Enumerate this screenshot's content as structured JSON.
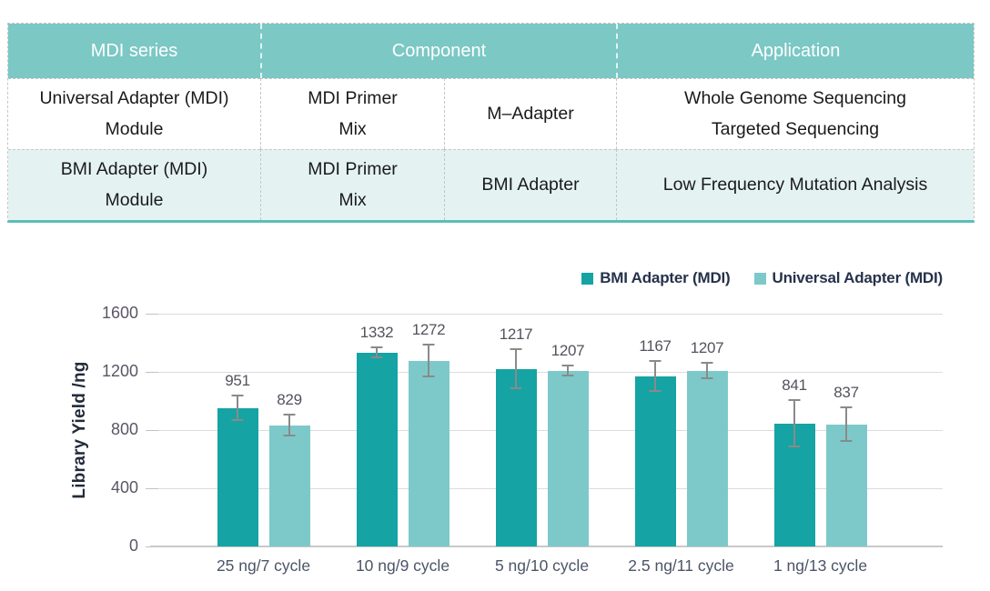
{
  "table": {
    "header": {
      "mdi_series": "MDI series",
      "component": "Component",
      "application": "Application"
    },
    "rows": [
      {
        "cells": [
          "Universal Adapter (MDI)\nModule",
          "MDI Primer\nMix",
          "M–Adapter",
          "Whole Genome Sequencing\nTargeted Sequencing"
        ]
      },
      {
        "cells": [
          "BMI Adapter (MDI)\nModule",
          "MDI Primer\nMix",
          "BMI Adapter",
          "Low Frequency Mutation Analysis"
        ]
      }
    ]
  },
  "chart_data": {
    "type": "bar",
    "title": "",
    "ylabel": "Library Yield /ng",
    "xlabel": "",
    "ylim": [
      0,
      1600
    ],
    "yticks": [
      0,
      400,
      800,
      1200,
      1600
    ],
    "grid": true,
    "legend_position": "top-right",
    "categories": [
      "25 ng/7 cycle",
      "10 ng/9 cycle",
      "5 ng/10 cycle",
      "2.5 ng/11 cycle",
      "1 ng/13 cycle"
    ],
    "series": [
      {
        "name": "BMI Adapter (MDI)",
        "color": "#16a3a3",
        "values": [
          951,
          1332,
          1217,
          1167,
          841
        ],
        "errors": [
          90,
          35,
          140,
          105,
          160
        ]
      },
      {
        "name": "Universal Adapter (MDI)",
        "color": "#7dc9ca",
        "values": [
          829,
          1272,
          1207,
          1207,
          837
        ],
        "errors": [
          75,
          110,
          40,
          55,
          120
        ]
      }
    ]
  },
  "palette": {
    "table_header_bg": "#7bc8c5",
    "table_row2_bg": "#e4f3f1",
    "table_bottom_border": "#5cbeb9",
    "dashed_border": "#c6c6c6",
    "gridline": "#dcdcdc",
    "error_bar": "#8a8a8a",
    "value_label": "#56515d",
    "legend_text": "#26324b"
  }
}
